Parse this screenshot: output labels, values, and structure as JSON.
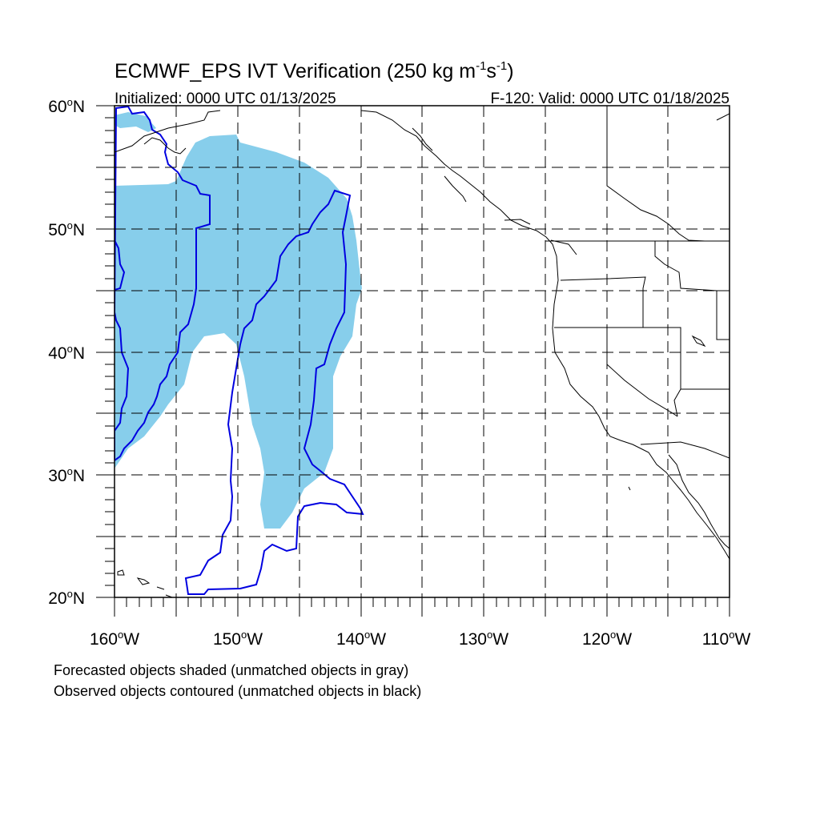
{
  "title": {
    "main": "ECMWF_EPS IVT Verification (250 kg m",
    "sup1": "-1",
    "mid": "s",
    "sup2": "-1",
    "end": ")"
  },
  "subtitle": {
    "initialized": "Initialized: 0000 UTC 01/13/2025",
    "valid": "F-120: Valid: 0000 UTC 01/18/2025"
  },
  "map": {
    "lon_range": [
      -160,
      -110
    ],
    "lat_range": [
      20,
      60
    ],
    "grid": "dashed, every 5 degrees",
    "lat_labels": [
      {
        "lat": 60,
        "num": "60",
        "deg": "o",
        "hem": "N"
      },
      {
        "lat": 50,
        "num": "50",
        "deg": "o",
        "hem": "N"
      },
      {
        "lat": 40,
        "num": "40",
        "deg": "o",
        "hem": "N"
      },
      {
        "lat": 30,
        "num": "30",
        "deg": "o",
        "hem": "N"
      },
      {
        "lat": 20,
        "num": "20",
        "deg": "o",
        "hem": "N"
      }
    ],
    "lon_labels": [
      {
        "lon": -160,
        "num": "160",
        "deg": "o",
        "hem": "W"
      },
      {
        "lon": -150,
        "num": "150",
        "deg": "o",
        "hem": "W"
      },
      {
        "lon": -140,
        "num": "140",
        "deg": "o",
        "hem": "W"
      },
      {
        "lon": -130,
        "num": "130",
        "deg": "o",
        "hem": "W"
      },
      {
        "lon": -120,
        "num": "120",
        "deg": "o",
        "hem": "W"
      },
      {
        "lon": -110,
        "num": "110",
        "deg": "o",
        "hem": "W"
      }
    ],
    "forecast_fill_color": "#87ceeb",
    "observed_contour_color": "#0000e0",
    "coast_color": "#000000"
  },
  "notes": {
    "line1": "Forecasted objects shaded (unmatched objects in gray)",
    "line2": "Observed objects contoured (unmatched objects in black)"
  }
}
